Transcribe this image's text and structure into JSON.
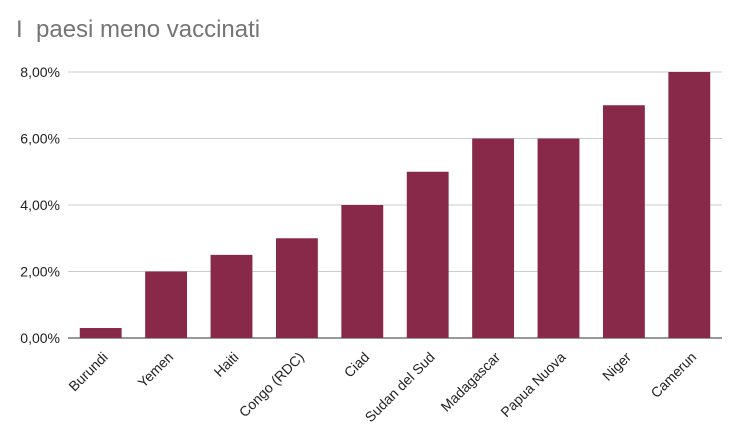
{
  "chart_data": {
    "type": "bar",
    "title": "I  paesi meno vaccinati",
    "xlabel": "",
    "ylabel": "",
    "categories": [
      "Burundi",
      "Yemen",
      "Haiti",
      "Congo (RDC)",
      "Ciad",
      "Sudan del Sud",
      "Madagascar",
      "Papua Nuova",
      "Niger",
      "Camerun"
    ],
    "values": [
      0.3,
      2.0,
      2.5,
      3.0,
      4.0,
      5.0,
      6.0,
      6.0,
      7.0,
      8.0
    ],
    "y_ticks": [
      "0,00%",
      "2,00%",
      "4,00%",
      "6,00%",
      "8,00%"
    ],
    "ylim": [
      0,
      8
    ],
    "grid": true,
    "legend": "none",
    "bar_color": "#88294a",
    "grid_color": "#cccccc",
    "axis_color": "#333333",
    "title_color": "#757575"
  }
}
